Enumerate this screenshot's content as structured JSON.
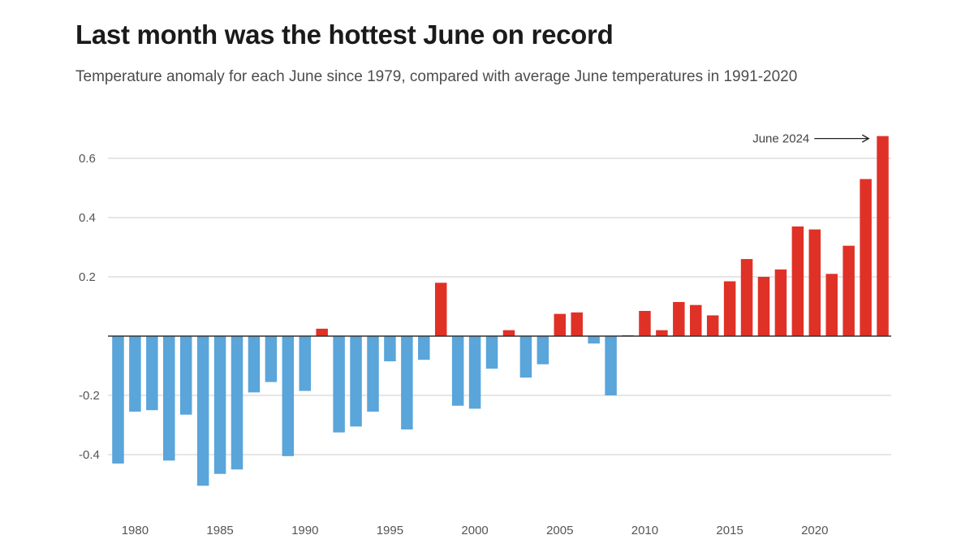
{
  "header": {
    "title": "Last month was the hottest June on record",
    "subtitle": "Temperature anomaly for each June since 1979, compared with average June temperatures in 1991-2020"
  },
  "colors": {
    "positive": "#e03127",
    "negative": "#5aa5da",
    "grid": "#cccccc",
    "baseline": "#333333",
    "text": "#555555"
  },
  "chart_data": {
    "type": "bar",
    "title": "Last month was the hottest June on record",
    "subtitle": "Temperature anomaly for each June since 1979, compared with average June temperatures in 1991-2020",
    "xlabel": "",
    "ylabel": "",
    "ylim": [
      -0.52,
      0.72
    ],
    "y_ticks": [
      0.6,
      0.4,
      0.2,
      -0.2,
      -0.4
    ],
    "y_tick_labels": [
      "0.6",
      "0.4",
      "0.2",
      "-0.2",
      "-0.4"
    ],
    "x_tick_labels": [
      "1980",
      "1985",
      "1990",
      "1995",
      "2000",
      "2005",
      "2010",
      "2015",
      "2020"
    ],
    "grid": true,
    "categories": [
      1979,
      1980,
      1981,
      1982,
      1983,
      1984,
      1985,
      1986,
      1987,
      1988,
      1989,
      1990,
      1991,
      1992,
      1993,
      1994,
      1995,
      1996,
      1997,
      1998,
      1999,
      2000,
      2001,
      2002,
      2003,
      2004,
      2005,
      2006,
      2007,
      2008,
      2009,
      2010,
      2011,
      2012,
      2013,
      2014,
      2015,
      2016,
      2017,
      2018,
      2019,
      2020,
      2021,
      2022,
      2023,
      2024
    ],
    "values": [
      -0.43,
      -0.255,
      -0.25,
      -0.42,
      -0.265,
      -0.505,
      -0.465,
      -0.45,
      -0.19,
      -0.155,
      -0.405,
      -0.185,
      0.025,
      -0.325,
      -0.305,
      -0.255,
      -0.085,
      -0.315,
      -0.08,
      0.18,
      -0.235,
      -0.245,
      -0.11,
      0.02,
      -0.14,
      -0.095,
      0.075,
      0.08,
      -0.025,
      -0.2,
      0.003,
      0.085,
      0.02,
      0.115,
      0.105,
      0.07,
      0.185,
      0.26,
      0.2,
      0.225,
      0.37,
      0.36,
      0.21,
      0.305,
      0.53,
      0.675
    ],
    "annotations": [
      {
        "text": "June 2024",
        "target": 2024
      }
    ]
  }
}
